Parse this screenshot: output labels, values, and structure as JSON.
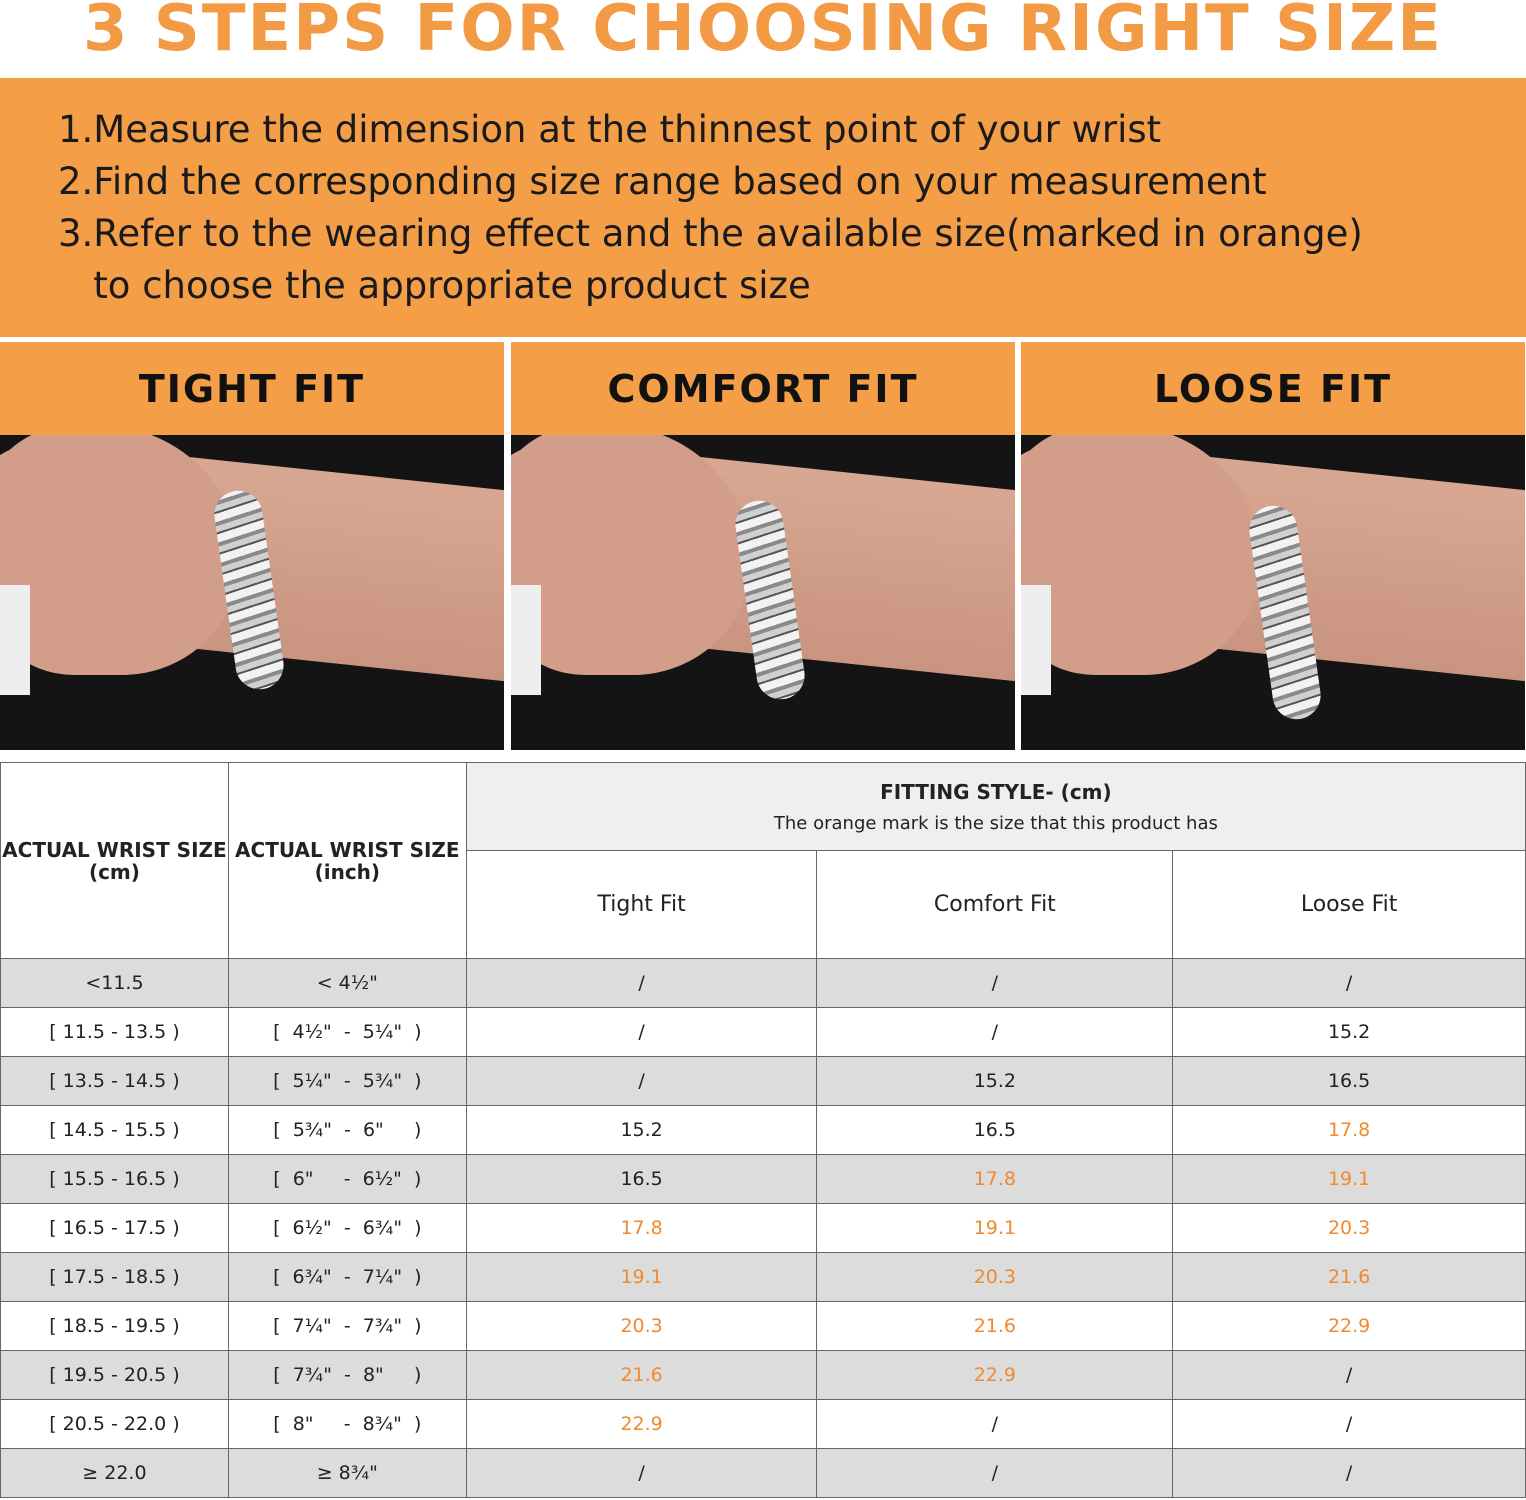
{
  "title": "3 STEPS FOR CHOOSING RIGHT SIZE",
  "steps": [
    "1.Measure the dimension at the thinnest point of your wrist",
    "2.Find the corresponding size range based on your measurement",
    "3.Refer to the wearing effect and the available size(marked in orange)",
    "   to choose the appropriate product size"
  ],
  "fits": [
    {
      "label": "TIGHT FIT"
    },
    {
      "label": "COMFORT FIT"
    },
    {
      "label": "LOOSE FIT"
    }
  ],
  "colors": {
    "accent": "#f59e48",
    "title": "#f39a44",
    "highlight": "#f08a2e"
  },
  "table": {
    "col_cm": "ACTUAL WRIST SIZE",
    "col_cm_unit": "(cm)",
    "col_inch": "ACTUAL WRIST SIZE",
    "col_inch_unit": "(inch)",
    "fitting_title": "FITTING STYLE- (cm)",
    "fitting_note": "The orange mark is the size that this product has",
    "sub": [
      "Tight Fit",
      "Comfort Fit",
      "Loose Fit"
    ],
    "rows": [
      {
        "cm": "<11.5",
        "inch": "< 4½\"",
        "v": [
          [
            "/",
            false
          ],
          [
            "/",
            false
          ],
          [
            "/",
            false
          ]
        ]
      },
      {
        "cm": "[ 11.5 - 13.5 )",
        "inch": "[  4½\"  -  5¼\"  )",
        "v": [
          [
            "/",
            false
          ],
          [
            "/",
            false
          ],
          [
            "15.2",
            false
          ]
        ]
      },
      {
        "cm": "[ 13.5 - 14.5 )",
        "inch": "[  5¼\"  -  5¾\"  )",
        "v": [
          [
            "/",
            false
          ],
          [
            "15.2",
            false
          ],
          [
            "16.5",
            false
          ]
        ]
      },
      {
        "cm": "[ 14.5 - 15.5 )",
        "inch": "[  5¾\"  -  6\"     )",
        "v": [
          [
            "15.2",
            false
          ],
          [
            "16.5",
            false
          ],
          [
            "17.8",
            true
          ]
        ]
      },
      {
        "cm": "[ 15.5 - 16.5 )",
        "inch": "[  6\"     -  6½\"  )",
        "v": [
          [
            "16.5",
            false
          ],
          [
            "17.8",
            true
          ],
          [
            "19.1",
            true
          ]
        ]
      },
      {
        "cm": "[ 16.5 - 17.5 )",
        "inch": "[  6½\"  -  6¾\"  )",
        "v": [
          [
            "17.8",
            true
          ],
          [
            "19.1",
            true
          ],
          [
            "20.3",
            true
          ]
        ]
      },
      {
        "cm": "[ 17.5 - 18.5 )",
        "inch": "[  6¾\"  -  7¼\"  )",
        "v": [
          [
            "19.1",
            true
          ],
          [
            "20.3",
            true
          ],
          [
            "21.6",
            true
          ]
        ]
      },
      {
        "cm": "[ 18.5 - 19.5 )",
        "inch": "[  7¼\"  -  7¾\"  )",
        "v": [
          [
            "20.3",
            true
          ],
          [
            "21.6",
            true
          ],
          [
            "22.9",
            true
          ]
        ]
      },
      {
        "cm": "[ 19.5 - 20.5 )",
        "inch": "[  7¾\"  -  8\"     )",
        "v": [
          [
            "21.6",
            true
          ],
          [
            "22.9",
            true
          ],
          [
            "/",
            false
          ]
        ]
      },
      {
        "cm": "[ 20.5 - 22.0 )",
        "inch": "[  8\"     -  8¾\"  )",
        "v": [
          [
            "22.9",
            true
          ],
          [
            "/",
            false
          ],
          [
            "/",
            false
          ]
        ]
      },
      {
        "cm": "≥ 22.0",
        "inch": "≥ 8¾\"",
        "v": [
          [
            "/",
            false
          ],
          [
            "/",
            false
          ],
          [
            "/",
            false
          ]
        ]
      }
    ]
  }
}
